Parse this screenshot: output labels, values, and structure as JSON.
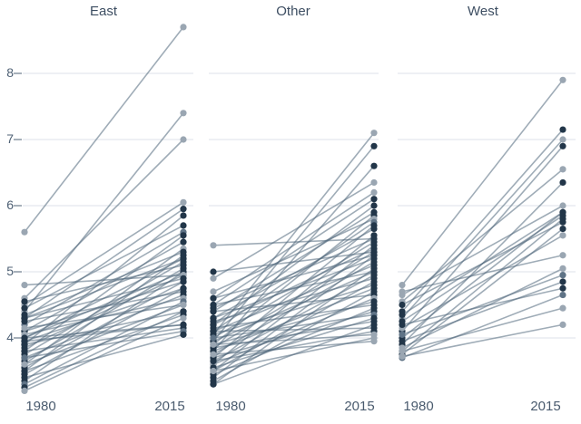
{
  "axes": {
    "y_ticks": [
      "8",
      "7",
      "6",
      "5",
      "4"
    ],
    "y_tick_values": [
      8,
      7,
      6,
      5,
      4
    ],
    "x_ticks": [
      "1980",
      "2015"
    ]
  },
  "colors": {
    "dark_dot": "#223649",
    "light_dot": "#9aa6b2",
    "medium_dot": "#5f7386",
    "line": "#51677c",
    "grid": "#dde2e8",
    "tick_dash": "#6b7b8c",
    "title_text": "#3d4e62",
    "axis_text": "#4f6175"
  },
  "chart_data": {
    "type": "line",
    "subtype": "slopegraph",
    "x": [
      "1980",
      "2015"
    ],
    "ylim": [
      3.0,
      9.0
    ],
    "yticks": [
      4,
      5,
      6,
      7,
      8
    ],
    "grid": true,
    "legend": "none",
    "panels": [
      {
        "title": "East",
        "lines": [
          {
            "from": 5.6,
            "to": 8.7,
            "shade": "light"
          },
          {
            "from": 4.4,
            "to": 7.4,
            "shade": "light"
          },
          {
            "from": 4.6,
            "to": 7.0,
            "shade": "light"
          },
          {
            "from": 4.5,
            "to": 6.05,
            "shade": "light"
          },
          {
            "from": 4.3,
            "to": 5.95,
            "shade": "dark"
          },
          {
            "from": 3.9,
            "to": 5.85,
            "shade": "dark"
          },
          {
            "from": 4.45,
            "to": 5.7,
            "shade": "dark"
          },
          {
            "from": 4.2,
            "to": 5.6,
            "shade": "medium"
          },
          {
            "from": 3.8,
            "to": 5.55,
            "shade": "dark"
          },
          {
            "from": 4.1,
            "to": 5.45,
            "shade": "dark"
          },
          {
            "from": 3.6,
            "to": 5.35,
            "shade": "light"
          },
          {
            "from": 4.35,
            "to": 5.3,
            "shade": "dark"
          },
          {
            "from": 3.5,
            "to": 5.25,
            "shade": "dark"
          },
          {
            "from": 4.0,
            "to": 5.2,
            "shade": "dark"
          },
          {
            "from": 4.3,
            "to": 5.2,
            "shade": "dark"
          },
          {
            "from": 3.75,
            "to": 5.15,
            "shade": "dark"
          },
          {
            "from": 4.55,
            "to": 5.1,
            "shade": "dark"
          },
          {
            "from": 3.65,
            "to": 5.05,
            "shade": "dark"
          },
          {
            "from": 4.0,
            "to": 5.0,
            "shade": "dark"
          },
          {
            "from": 3.35,
            "to": 5.0,
            "shade": "dark"
          },
          {
            "from": 3.85,
            "to": 4.95,
            "shade": "dark"
          },
          {
            "from": 4.8,
            "to": 4.95,
            "shade": "light"
          },
          {
            "from": 4.3,
            "to": 4.9,
            "shade": "dark"
          },
          {
            "from": 3.55,
            "to": 4.85,
            "shade": "dark"
          },
          {
            "from": 4.1,
            "to": 4.85,
            "shade": "dark"
          },
          {
            "from": 3.45,
            "to": 4.75,
            "shade": "dark"
          },
          {
            "from": 3.95,
            "to": 4.75,
            "shade": "dark"
          },
          {
            "from": 4.25,
            "to": 4.7,
            "shade": "dark"
          },
          {
            "from": 3.7,
            "to": 4.65,
            "shade": "dark"
          },
          {
            "from": 4.05,
            "to": 4.6,
            "shade": "light"
          },
          {
            "from": 3.3,
            "to": 4.55,
            "shade": "medium"
          },
          {
            "from": 4.15,
            "to": 4.5,
            "shade": "light"
          },
          {
            "from": 3.6,
            "to": 4.5,
            "shade": "light"
          },
          {
            "from": 3.9,
            "to": 4.4,
            "shade": "dark"
          },
          {
            "from": 3.25,
            "to": 4.4,
            "shade": "dark"
          },
          {
            "from": 3.5,
            "to": 4.35,
            "shade": "dark"
          },
          {
            "from": 3.2,
            "to": 4.3,
            "shade": "light"
          },
          {
            "from": 4.0,
            "to": 4.2,
            "shade": "dark"
          },
          {
            "from": 3.95,
            "to": 4.2,
            "shade": "dark"
          },
          {
            "from": 3.8,
            "to": 4.15,
            "shade": "dark"
          },
          {
            "from": 3.7,
            "to": 4.1,
            "shade": "medium"
          },
          {
            "from": 3.4,
            "to": 4.05,
            "shade": "dark"
          }
        ]
      },
      {
        "title": "Other",
        "lines": [
          {
            "from": 5.4,
            "to": 5.5,
            "shade": "light"
          },
          {
            "from": 5.0,
            "to": 5.3,
            "shade": "dark"
          },
          {
            "from": 4.05,
            "to": 7.1,
            "shade": "light"
          },
          {
            "from": 3.95,
            "to": 6.9,
            "shade": "dark"
          },
          {
            "from": 3.8,
            "to": 6.6,
            "shade": "dark"
          },
          {
            "from": 4.9,
            "to": 6.35,
            "shade": "light"
          },
          {
            "from": 4.6,
            "to": 6.2,
            "shade": "light"
          },
          {
            "from": 4.5,
            "to": 6.1,
            "shade": "dark"
          },
          {
            "from": 4.2,
            "to": 6.0,
            "shade": "dark"
          },
          {
            "from": 4.4,
            "to": 5.9,
            "shade": "dark"
          },
          {
            "from": 3.9,
            "to": 5.85,
            "shade": "dark"
          },
          {
            "from": 4.7,
            "to": 5.8,
            "shade": "light"
          },
          {
            "from": 4.1,
            "to": 5.75,
            "shade": "medium"
          },
          {
            "from": 3.7,
            "to": 5.7,
            "shade": "dark"
          },
          {
            "from": 4.3,
            "to": 5.65,
            "shade": "dark"
          },
          {
            "from": 3.6,
            "to": 5.55,
            "shade": "dark"
          },
          {
            "from": 4.45,
            "to": 5.5,
            "shade": "dark"
          },
          {
            "from": 4.0,
            "to": 5.45,
            "shade": "dark"
          },
          {
            "from": 3.5,
            "to": 5.4,
            "shade": "dark"
          },
          {
            "from": 4.2,
            "to": 5.35,
            "shade": "dark"
          },
          {
            "from": 3.85,
            "to": 5.3,
            "shade": "dark"
          },
          {
            "from": 4.6,
            "to": 5.25,
            "shade": "dark"
          },
          {
            "from": 3.4,
            "to": 5.25,
            "shade": "dark"
          },
          {
            "from": 4.3,
            "to": 5.2,
            "shade": "dark"
          },
          {
            "from": 3.75,
            "to": 5.15,
            "shade": "dark"
          },
          {
            "from": 4.1,
            "to": 5.1,
            "shade": "dark"
          },
          {
            "from": 3.3,
            "to": 5.05,
            "shade": "dark"
          },
          {
            "from": 3.95,
            "to": 5.0,
            "shade": "dark"
          },
          {
            "from": 4.5,
            "to": 5.0,
            "shade": "dark"
          },
          {
            "from": 3.65,
            "to": 4.95,
            "shade": "dark"
          },
          {
            "from": 4.25,
            "to": 4.9,
            "shade": "dark"
          },
          {
            "from": 3.5,
            "to": 4.85,
            "shade": "dark"
          },
          {
            "from": 4.05,
            "to": 4.8,
            "shade": "dark"
          },
          {
            "from": 3.8,
            "to": 4.75,
            "shade": "dark"
          },
          {
            "from": 3.35,
            "to": 4.7,
            "shade": "dark"
          },
          {
            "from": 4.4,
            "to": 4.65,
            "shade": "dark"
          },
          {
            "from": 3.6,
            "to": 4.6,
            "shade": "light"
          },
          {
            "from": 3.9,
            "to": 4.55,
            "shade": "dark"
          },
          {
            "from": 4.15,
            "to": 4.5,
            "shade": "dark"
          },
          {
            "from": 3.45,
            "to": 4.45,
            "shade": "dark"
          },
          {
            "from": 3.7,
            "to": 4.4,
            "shade": "dark"
          },
          {
            "from": 4.0,
            "to": 4.35,
            "shade": "medium"
          },
          {
            "from": 3.55,
            "to": 4.3,
            "shade": "dark"
          },
          {
            "from": 3.85,
            "to": 4.25,
            "shade": "dark"
          },
          {
            "from": 3.3,
            "to": 4.2,
            "shade": "dark"
          },
          {
            "from": 4.1,
            "to": 4.15,
            "shade": "dark"
          },
          {
            "from": 3.65,
            "to": 4.1,
            "shade": "dark"
          },
          {
            "from": 3.9,
            "to": 4.05,
            "shade": "light"
          },
          {
            "from": 3.5,
            "to": 4.0,
            "shade": "light"
          },
          {
            "from": 3.75,
            "to": 3.95,
            "shade": "light"
          }
        ]
      },
      {
        "title": "West",
        "lines": [
          {
            "from": 4.8,
            "to": 7.9,
            "shade": "light"
          },
          {
            "from": 4.4,
            "to": 7.15,
            "shade": "dark"
          },
          {
            "from": 4.3,
            "to": 7.0,
            "shade": "light"
          },
          {
            "from": 4.1,
            "to": 6.9,
            "shade": "dark"
          },
          {
            "from": 4.55,
            "to": 6.55,
            "shade": "light"
          },
          {
            "from": 3.9,
            "to": 6.35,
            "shade": "dark"
          },
          {
            "from": 4.65,
            "to": 6.0,
            "shade": "light"
          },
          {
            "from": 4.0,
            "to": 5.9,
            "shade": "dark"
          },
          {
            "from": 4.35,
            "to": 5.9,
            "shade": "dark"
          },
          {
            "from": 4.25,
            "to": 5.85,
            "shade": "dark"
          },
          {
            "from": 3.8,
            "to": 5.8,
            "shade": "dark"
          },
          {
            "from": 4.5,
            "to": 5.75,
            "shade": "dark"
          },
          {
            "from": 3.75,
            "to": 5.65,
            "shade": "dark"
          },
          {
            "from": 4.15,
            "to": 5.55,
            "shade": "light"
          },
          {
            "from": 4.7,
            "to": 5.25,
            "shade": "light"
          },
          {
            "from": 3.85,
            "to": 5.05,
            "shade": "light"
          },
          {
            "from": 4.05,
            "to": 4.95,
            "shade": "medium"
          },
          {
            "from": 3.95,
            "to": 4.85,
            "shade": "dark"
          },
          {
            "from": 4.2,
            "to": 4.75,
            "shade": "dark"
          },
          {
            "from": 3.7,
            "to": 4.65,
            "shade": "medium"
          },
          {
            "from": 3.8,
            "to": 4.45,
            "shade": "light"
          },
          {
            "from": 3.72,
            "to": 4.2,
            "shade": "light"
          }
        ]
      }
    ]
  }
}
